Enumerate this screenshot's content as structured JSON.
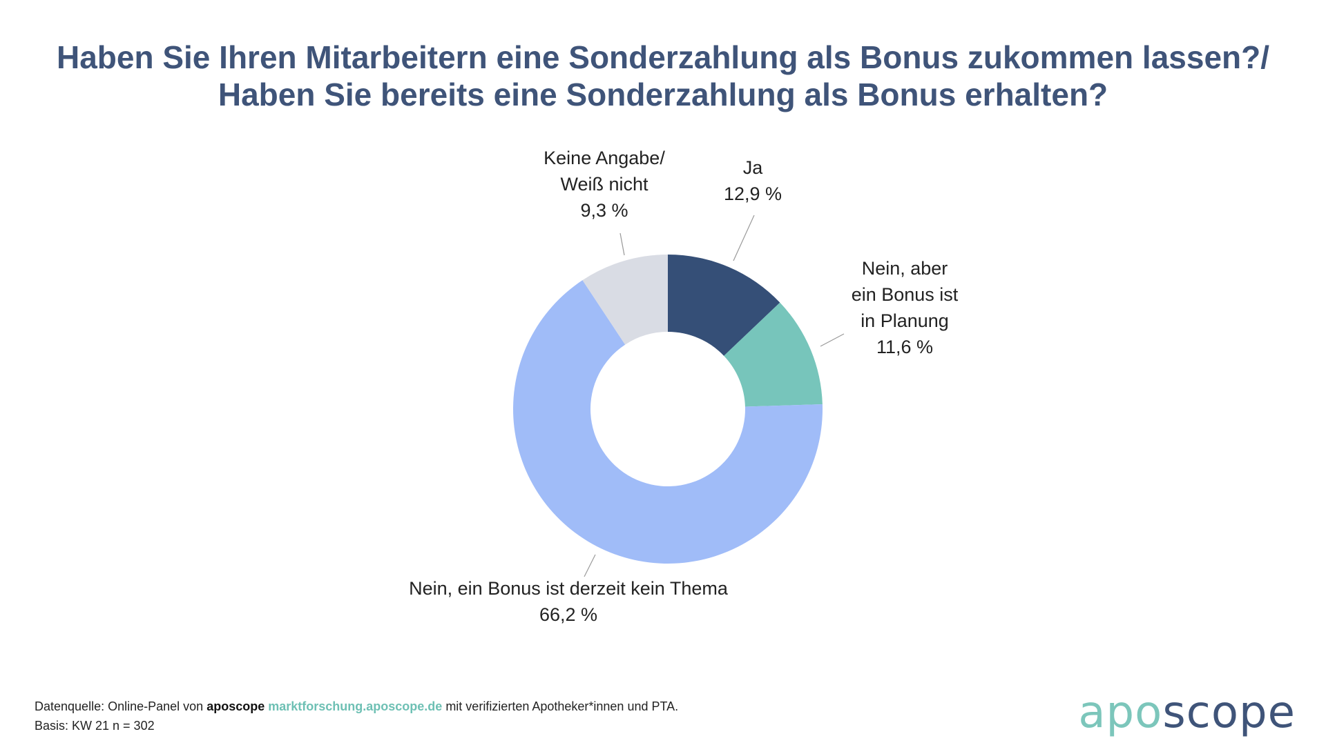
{
  "title": {
    "line1": "Haben Sie Ihren Mitarbeitern eine Sonderzahlung als Bonus zukommen lassen?/",
    "line2": "Haben Sie bereits eine Sonderzahlung als Bonus erhalten?"
  },
  "chart_data": {
    "type": "pie",
    "variant": "donut",
    "title": "Haben Sie Ihren Mitarbeitern eine Sonderzahlung als Bonus zukommen lassen?/ Haben Sie bereits eine Sonderzahlung als Bonus erhalten?",
    "unit": "%",
    "slices": [
      {
        "name": "Ja",
        "label_lines": [
          "Ja",
          "12,9 %"
        ],
        "value": 12.9,
        "color": "#354f77"
      },
      {
        "name": "Nein, aber ein Bonus ist in Planung",
        "label_lines": [
          "Nein, aber",
          "ein Bonus ist",
          "in Planung",
          "11,6 %"
        ],
        "value": 11.6,
        "color": "#77c5bb"
      },
      {
        "name": "Nein, ein Bonus ist derzeit kein Thema",
        "label_lines": [
          "Nein, ein Bonus ist derzeit kein Thema",
          "66,2 %"
        ],
        "value": 66.2,
        "color": "#a0bcf8"
      },
      {
        "name": "Keine Angabe/ Weiß nicht",
        "label_lines": [
          "Keine Angabe/",
          "Weiß nicht",
          "9,3 %"
        ],
        "value": 9.3,
        "color": "#d9dce4"
      }
    ]
  },
  "footer": {
    "source_prefix": "Datenquelle: Online-Panel von",
    "brand": "aposcope",
    "url": "marktforschung.aposcope.de",
    "source_suffix": "mit verifizierten Apotheker*innen und PTA.",
    "basis": "Basis: KW 21 n = 302"
  },
  "logo": {
    "part1": "apo",
    "part2": "scope"
  }
}
